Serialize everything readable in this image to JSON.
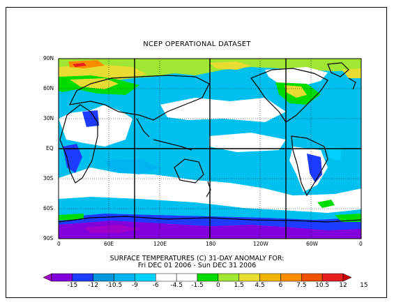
{
  "title": "NCEP OPERATIONAL DATASET",
  "subtitle_line1": "SURFACE TEMPERATURES (C)   31-DAY ANOMALY FOR:",
  "subtitle_line2": "Fri DEC 01 2006 - Sun DEC 31 2006",
  "lat_labels": [
    "90N",
    "60N",
    "30N",
    "EQ",
    "30S",
    "60S",
    "90S"
  ],
  "lon_labels": [
    "0",
    "60E",
    "120E",
    "180",
    "120W",
    "60W",
    "0"
  ],
  "colorbar": {
    "labels": [
      "-15",
      "-12",
      "-10.5",
      "-9",
      "-6",
      "-4.5",
      "-1.5",
      "0",
      "1.5",
      "4.5",
      "6",
      "7.5",
      "10.5",
      "12",
      "15"
    ],
    "colors": [
      "#a000c8",
      "#8200dc",
      "#1e3cff",
      "#0096dc",
      "#00b4f0",
      "#00d2ff",
      "#ffffff",
      "#ffffff",
      "#00dc00",
      "#a0e632",
      "#e6dc32",
      "#f0b400",
      "#fa8c00",
      "#f05000",
      "#e61e1e",
      "#c80000"
    ]
  },
  "colors": {
    "ocean_anomaly": "#00c0f0",
    "near_zero": "#ffffff",
    "warm_green": "#00dc00",
    "warm_yellow": "#e6dc32",
    "warm_orange": "#f0b400",
    "cold_blue": "#1e3cff",
    "cold_purple": "#8200dc",
    "coastline": "#000000"
  }
}
